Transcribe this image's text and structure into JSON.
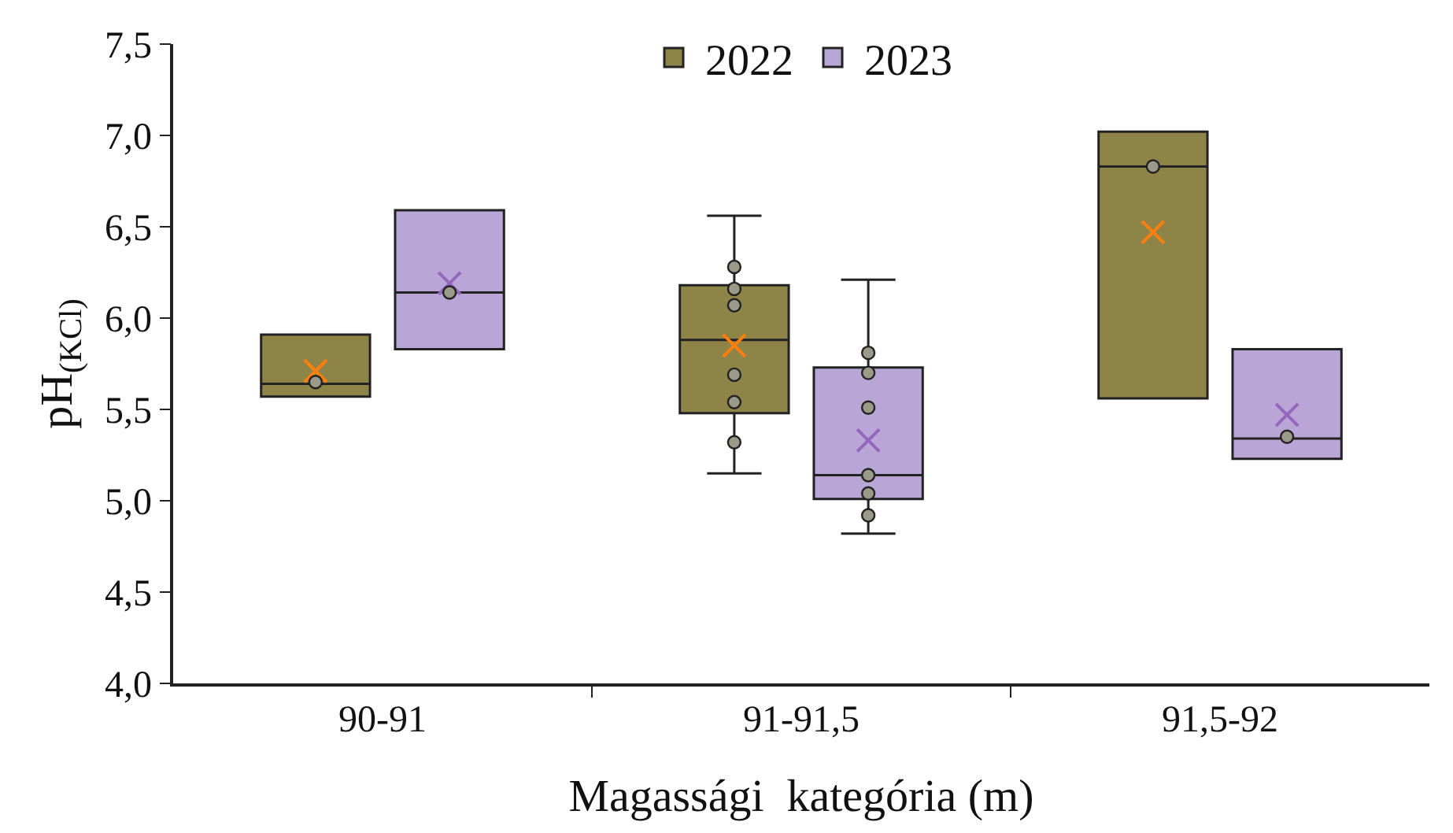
{
  "chart_data": {
    "type": "box",
    "xlabel": "Magassági  kategória (m)",
    "ylabel": "pH$_{(KCl)}$",
    "categories": [
      "90-91",
      "91-91,5",
      "91,5-92"
    ],
    "ylim": [
      4.0,
      7.5
    ],
    "yticks": [
      {
        "value": 4.0,
        "label": "4,0"
      },
      {
        "value": 4.5,
        "label": "4,5"
      },
      {
        "value": 5.0,
        "label": "5,0"
      },
      {
        "value": 5.5,
        "label": "5,5"
      },
      {
        "value": 6.0,
        "label": "6,0"
      },
      {
        "value": 6.5,
        "label": "6,5"
      },
      {
        "value": 7.0,
        "label": "7,0"
      },
      {
        "value": 7.5,
        "label": "7,5"
      }
    ],
    "grid": false,
    "legend": "top",
    "marker": "circle",
    "series": [
      {
        "name": "2022",
        "color": "#8f8448",
        "boxes": [
          {
            "low": 5.57,
            "q1": 5.57,
            "median": 5.64,
            "q3": 5.91,
            "high": 5.91,
            "mean": 5.71,
            "outliers": [
              5.65
            ]
          },
          {
            "low": 5.15,
            "q1": 5.48,
            "median": 5.88,
            "q3": 6.18,
            "high": 6.56,
            "mean": 5.85,
            "outliers": [
              6.28,
              6.16,
              6.07,
              5.69,
              5.54,
              5.32
            ]
          },
          {
            "low": 5.56,
            "q1": 5.56,
            "median": 6.83,
            "q3": 7.02,
            "high": 7.02,
            "mean": 6.47,
            "outliers": [
              6.83
            ]
          }
        ]
      },
      {
        "name": "2023",
        "color": "#b9a6d6",
        "boxes": [
          {
            "low": 5.83,
            "q1": 5.83,
            "median": 6.14,
            "q3": 6.59,
            "high": 6.59,
            "mean": 6.19,
            "outliers": [
              6.14
            ]
          },
          {
            "low": 4.82,
            "q1": 5.01,
            "median": 5.14,
            "q3": 5.73,
            "high": 6.21,
            "mean": 5.33,
            "outliers": [
              5.81,
              5.7,
              5.51,
              5.14,
              5.04,
              4.92
            ]
          },
          {
            "low": 5.23,
            "q1": 5.23,
            "median": 5.34,
            "q3": 5.83,
            "high": 5.83,
            "mean": 5.47,
            "outliers": [
              5.35
            ]
          }
        ]
      }
    ]
  }
}
